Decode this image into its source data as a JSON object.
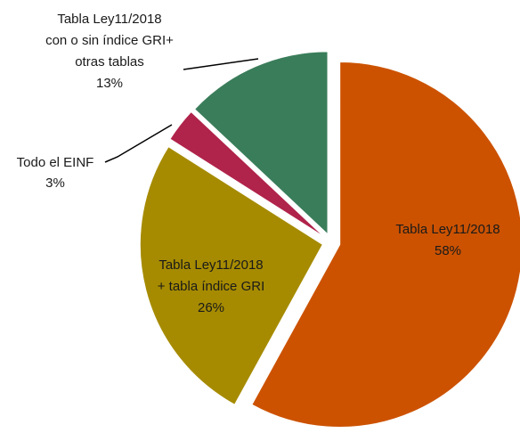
{
  "chart_data": {
    "type": "pie",
    "categories": [
      [
        "Tabla Ley11/2018"
      ],
      [
        "Tabla Ley11/2018",
        "+ tabla índice GRI"
      ],
      [
        "Todo el EINF"
      ],
      [
        "Tabla Ley11/2018",
        "con o sin índice GRI+",
        "otras tablas"
      ]
    ],
    "values": [
      58,
      26,
      3,
      13
    ],
    "value_labels": [
      "58%",
      "26%",
      "3%",
      "13%"
    ],
    "colors": [
      "#cc5200",
      "#a68b00",
      "#b0234a",
      "#3a7d5a"
    ]
  }
}
